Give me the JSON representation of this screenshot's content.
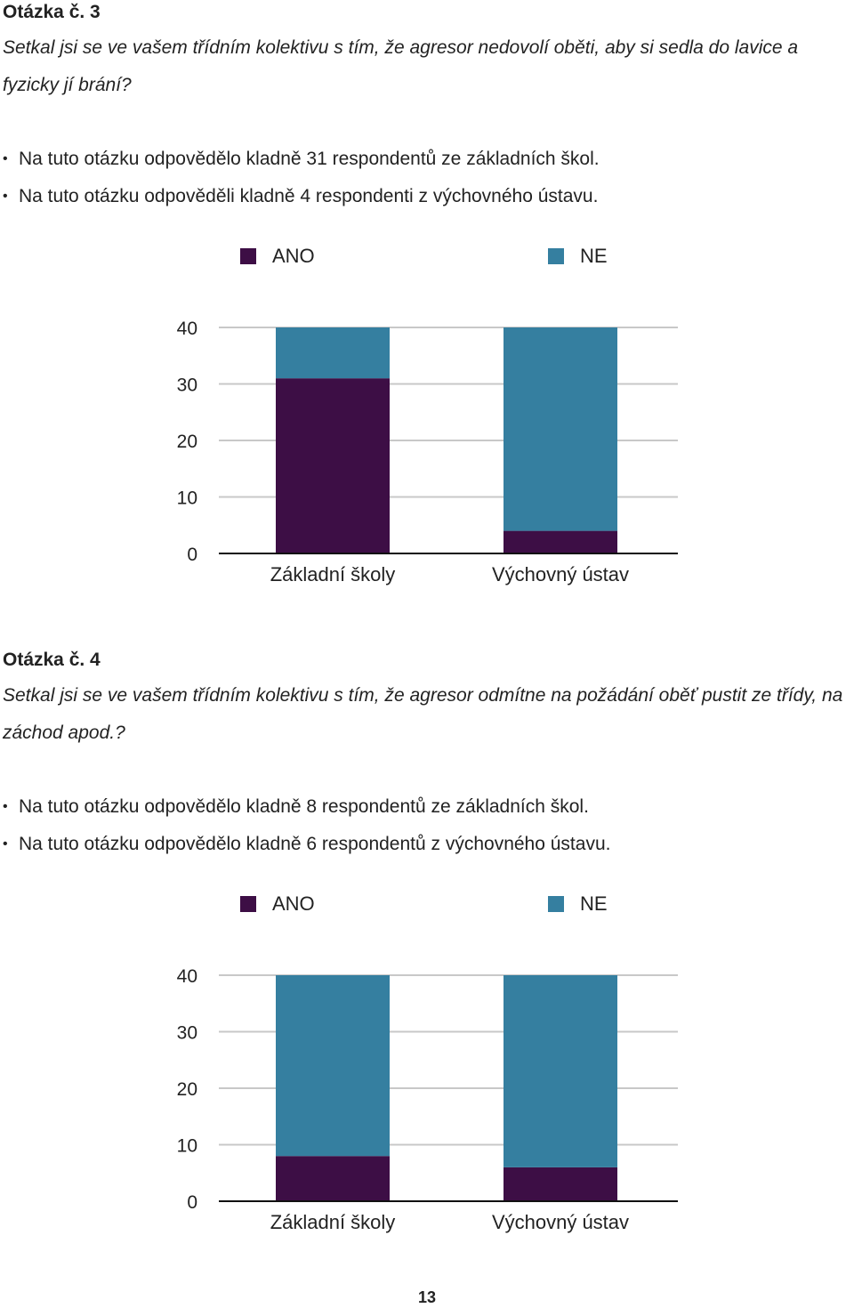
{
  "questions": [
    {
      "heading": "Otázka č. 3",
      "text": "Setkal jsi se ve vašem třídním kolektivu s tím, že agresor nedovolí oběti, aby si sedla do lavice a fyzicky jí brání?",
      "bullets": [
        "Na tuto otázku odpovědělo kladně 31 respondentů ze základních škol.",
        "Na tuto otázku odpověděli kladně 4 respondenti z výchovného ústavu."
      ]
    },
    {
      "heading": "Otázka č. 4",
      "text": "Setkal jsi se ve vašem třídním kolektivu s tím, že agresor odmítne na požádání oběť pustit ze třídy, na záchod apod.?",
      "bullets": [
        "Na tuto otázku odpovědělo kladně 8 respondentů ze základních škol.",
        "Na tuto otázku odpovědělo kladně 6 respondentů z výchovného ústavu."
      ]
    }
  ],
  "chart_data": [
    {
      "type": "bar",
      "stacked": true,
      "categories": [
        "Základní školy",
        "Výchovný ústav"
      ],
      "series": [
        {
          "name": "ANO",
          "color": "#3d0e45",
          "values": [
            31,
            4
          ]
        },
        {
          "name": "NE",
          "color": "#357fa0",
          "values": [
            9,
            36
          ]
        }
      ],
      "yticks": [
        0,
        10,
        20,
        30,
        40
      ],
      "ylim": [
        0,
        40
      ],
      "legend_position": "top",
      "grid": true
    },
    {
      "type": "bar",
      "stacked": true,
      "categories": [
        "Základní školy",
        "Výchovný ústav"
      ],
      "series": [
        {
          "name": "ANO",
          "color": "#3d0e45",
          "values": [
            8,
            6
          ]
        },
        {
          "name": "NE",
          "color": "#357fa0",
          "values": [
            32,
            34
          ]
        }
      ],
      "yticks": [
        0,
        10,
        20,
        30,
        40
      ],
      "ylim": [
        0,
        40
      ],
      "legend_position": "top",
      "grid": true
    }
  ],
  "page_number": "13"
}
